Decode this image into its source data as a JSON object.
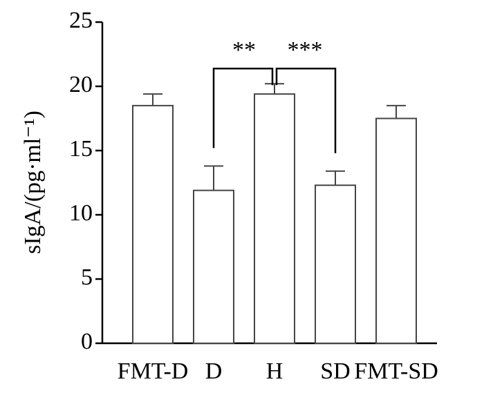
{
  "chart_data": {
    "type": "bar",
    "ylabel": "sIgA/(pg·ml⁻¹)",
    "categories": [
      "FMT-D",
      "D",
      "H",
      "SD",
      "FMT-SD"
    ],
    "values": [
      18.5,
      11.9,
      19.4,
      12.3,
      17.5
    ],
    "errors": [
      0.9,
      1.9,
      0.8,
      1.1,
      1.0
    ],
    "color": "#ffffff",
    "ylim": [
      0,
      25
    ],
    "yticks": [
      0,
      5,
      10,
      15,
      20,
      25
    ],
    "annotations": [
      {
        "text": "**",
        "between": [
          1,
          2
        ]
      },
      {
        "text": "***",
        "between": [
          2,
          3
        ]
      }
    ]
  }
}
